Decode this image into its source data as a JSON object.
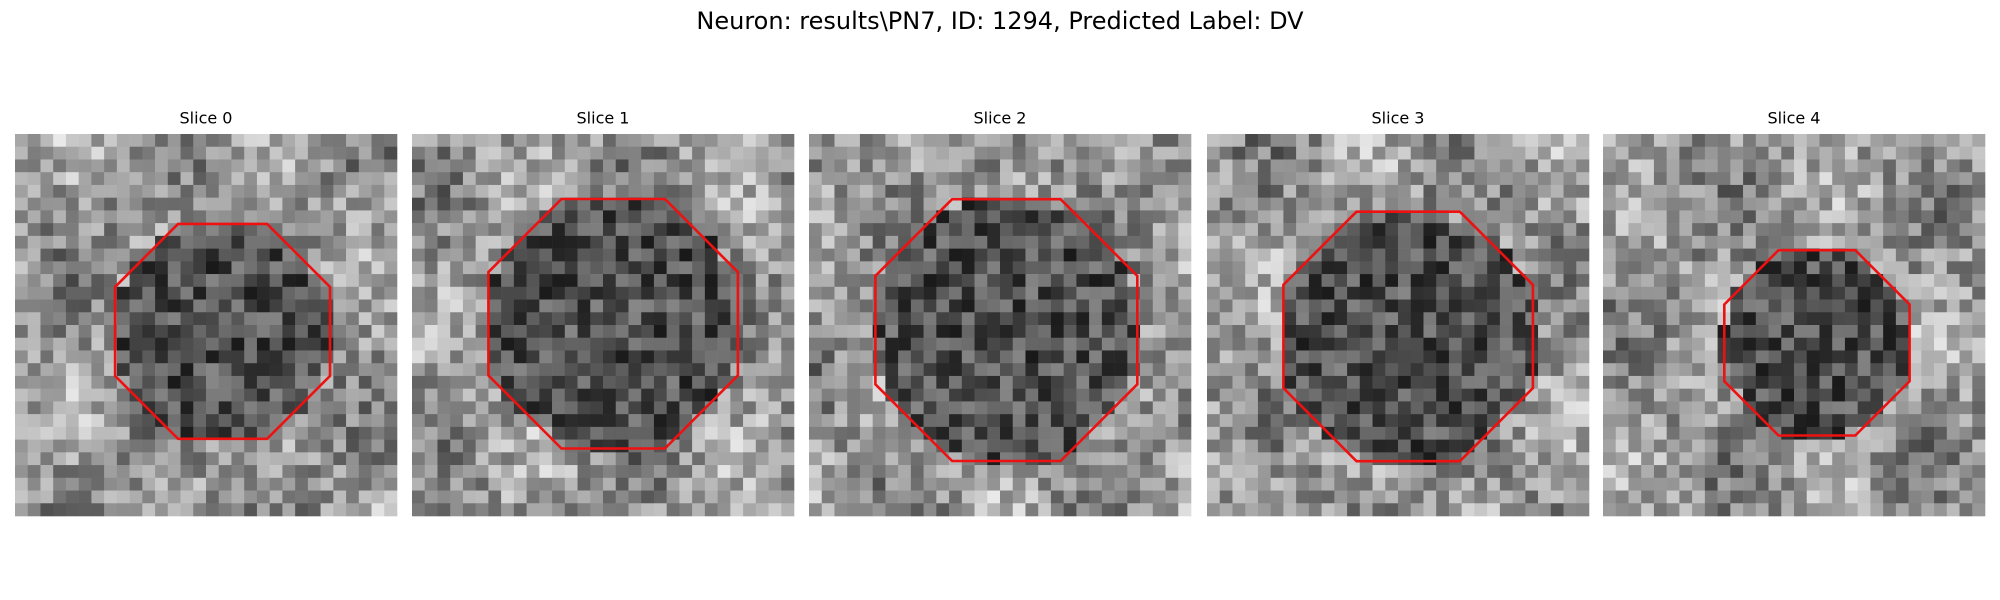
{
  "title": "Neuron: results\\PN7, ID: 1294, Predicted Label: DV",
  "panels": [
    {
      "title": "Slice 0"
    },
    {
      "title": "Slice 1"
    },
    {
      "title": "Slice 2"
    },
    {
      "title": "Slice 3"
    },
    {
      "title": "Slice 4"
    }
  ]
}
